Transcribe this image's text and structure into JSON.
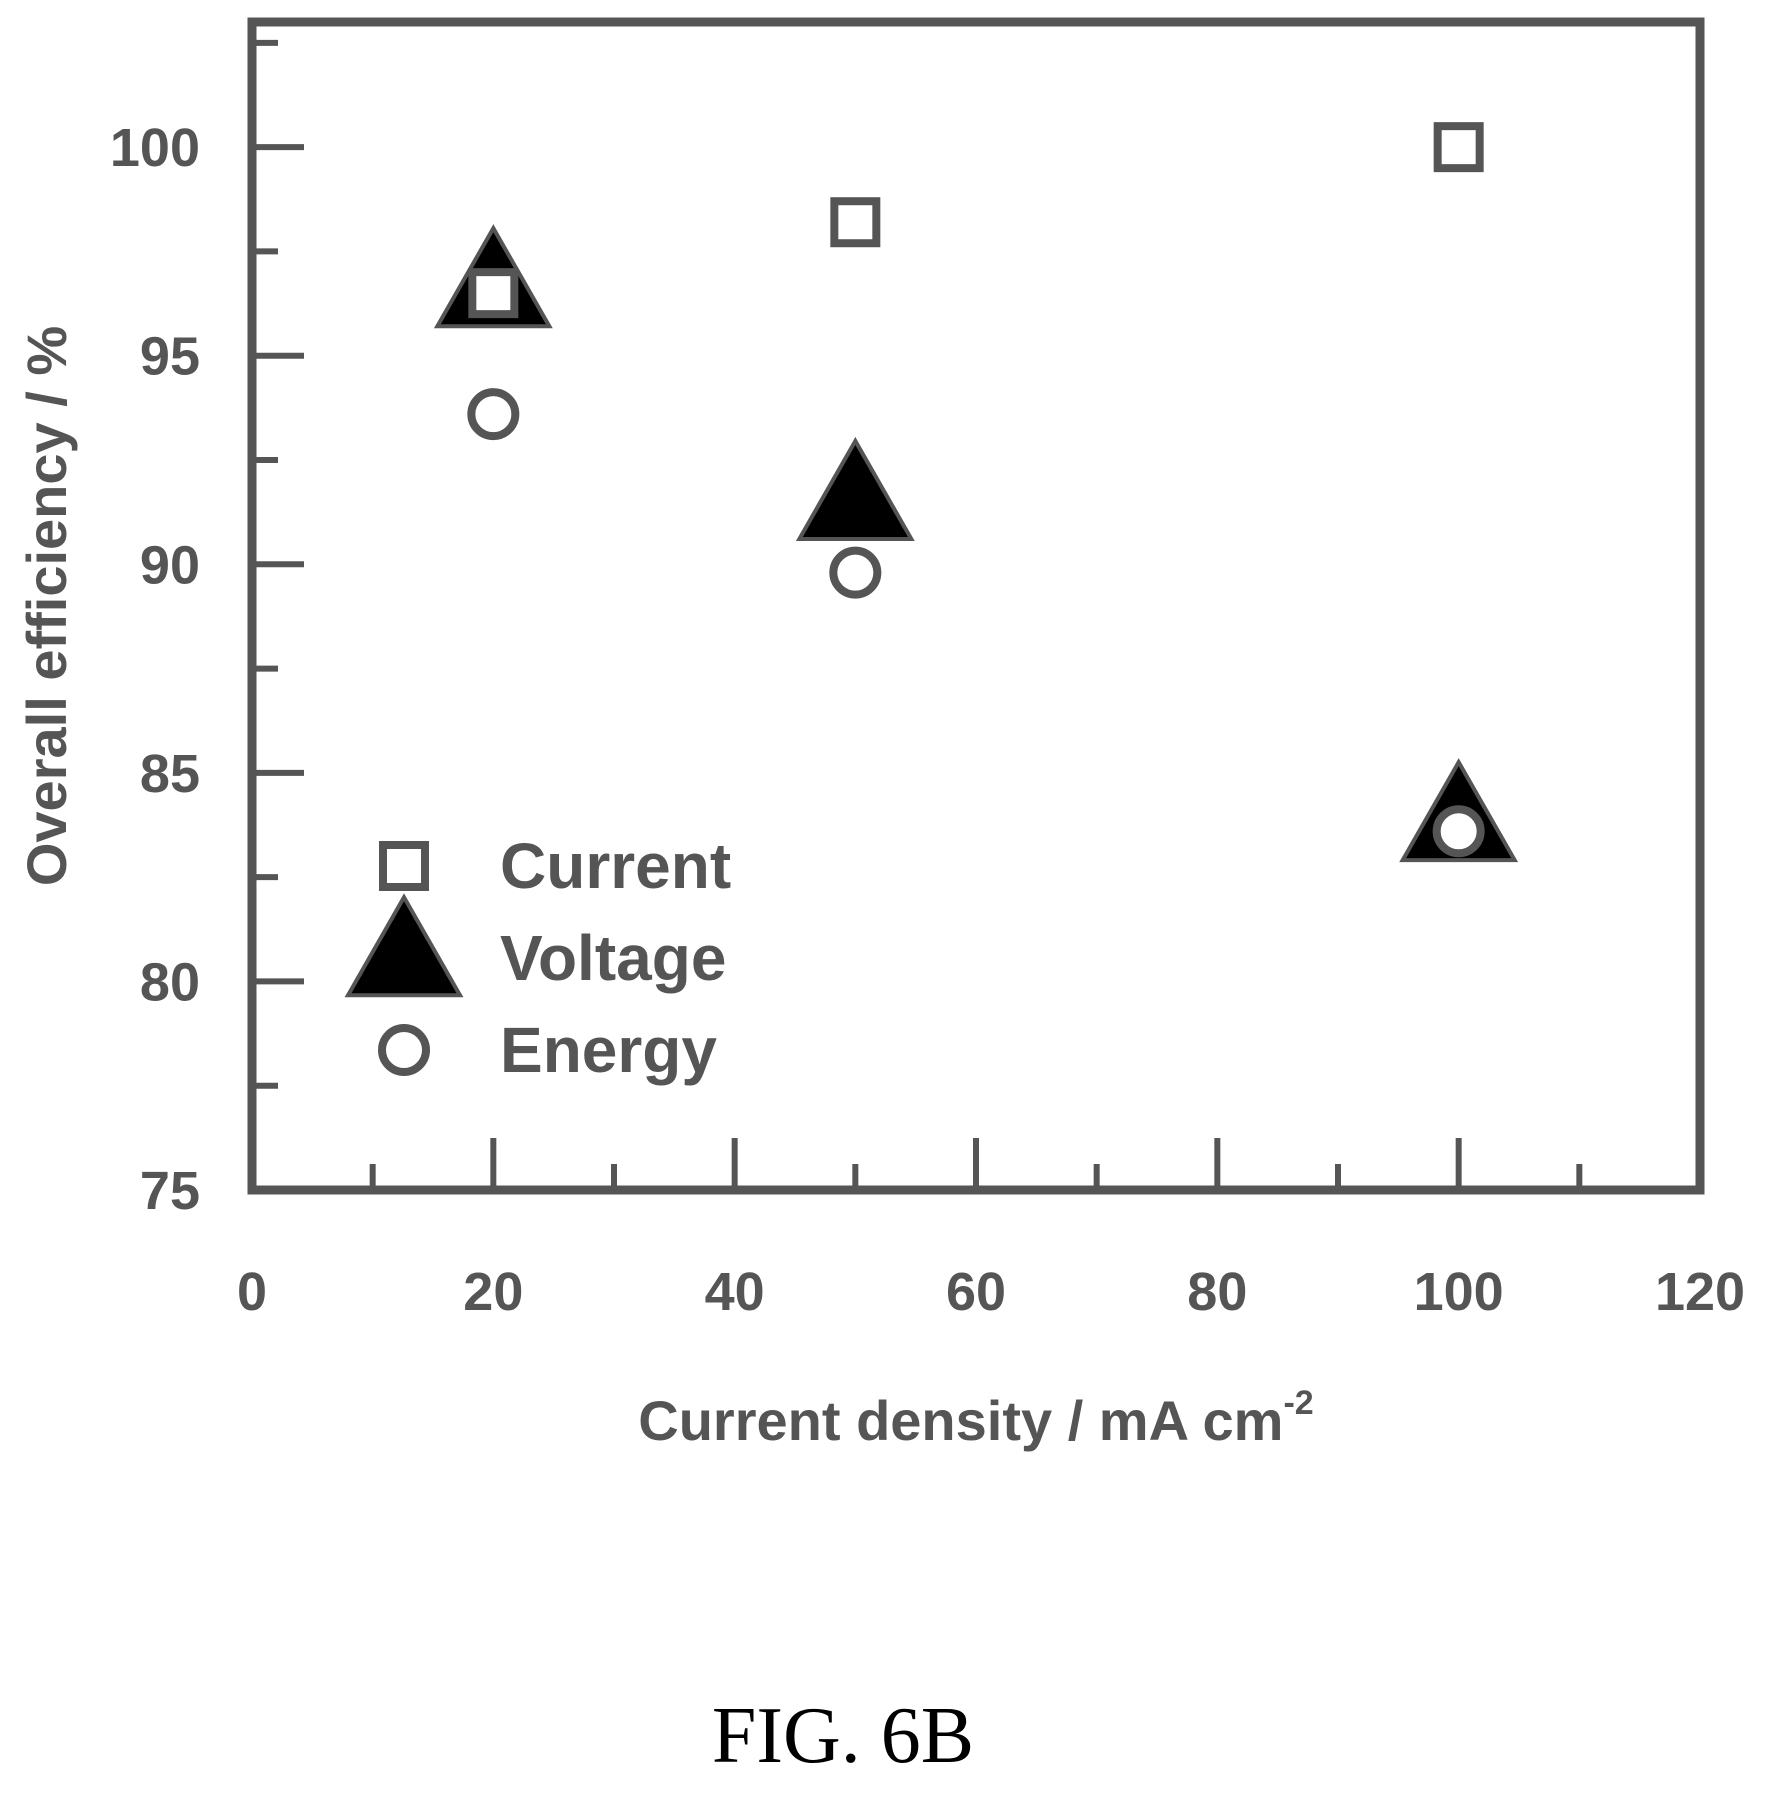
{
  "figure_label": "FIG. 6B",
  "chart_data": {
    "type": "scatter",
    "xlabel": "Current density / mA cm",
    "xlabel_superscript": "-2",
    "ylabel": "Overall efficiency / %",
    "xlim": [
      0,
      120
    ],
    "ylim": [
      75,
      103
    ],
    "x_ticks": [
      0,
      20,
      40,
      60,
      80,
      100,
      120
    ],
    "y_ticks": [
      75,
      80,
      85,
      90,
      95,
      100
    ],
    "legend_position": "lower-left",
    "grid": false,
    "series": [
      {
        "name": "Current",
        "marker": "open-square",
        "x": [
          20,
          50,
          100
        ],
        "y": [
          96.5,
          98.2,
          100
        ]
      },
      {
        "name": "Voltage",
        "marker": "filled-triangle",
        "x": [
          20,
          50,
          100
        ],
        "y": [
          96.6,
          91.5,
          83.8
        ]
      },
      {
        "name": "Energy",
        "marker": "open-circle",
        "x": [
          20,
          50,
          100
        ],
        "y": [
          93.6,
          89.8,
          83.6
        ]
      }
    ]
  }
}
